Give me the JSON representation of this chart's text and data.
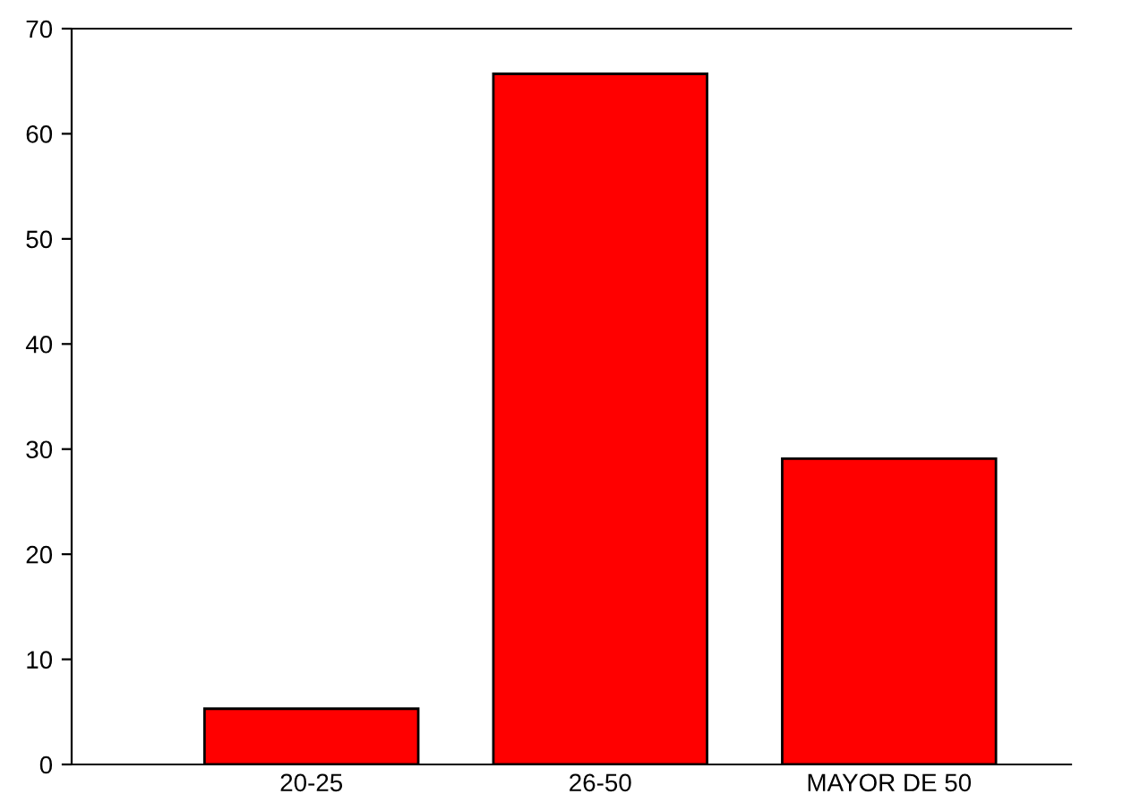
{
  "chart_data": {
    "type": "bar",
    "categories": [
      "20-25",
      "26-50",
      "MAYOR DE 50"
    ],
    "values": [
      5.3,
      65.7,
      29.1
    ],
    "color": "#ff0000",
    "ylim": [
      0,
      70
    ],
    "yticks": [
      0,
      10,
      20,
      30,
      40,
      50,
      60,
      70
    ],
    "grid": false
  }
}
